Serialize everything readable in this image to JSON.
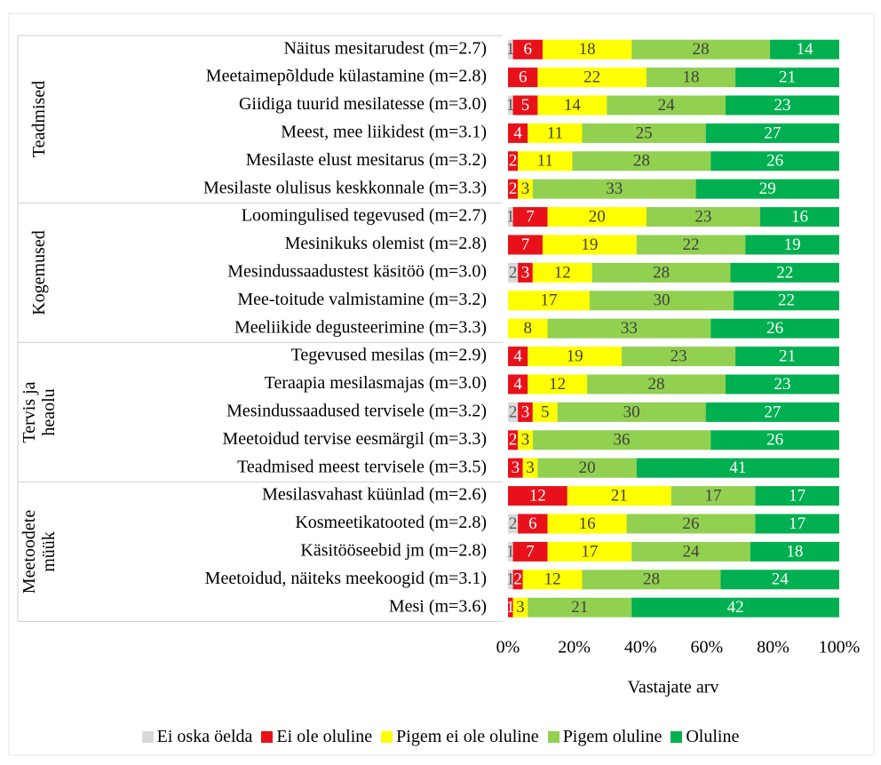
{
  "chart_data": {
    "type": "bar",
    "orientation": "horizontal",
    "stacked": "percent",
    "groups": [
      {
        "name": "Teadmised",
        "categories": [
          "Näitus mesitarudest (m=2.7)",
          "Meetaimepõldude külastamine (m=2.8)",
          "Giidiga tuurid mesilatesse (m=3.0)",
          "Meest, mee liikidest (m=3.1)",
          "Mesilaste elust mesitarus (m=3.2)",
          "Mesilaste olulisus keskkonnale (m=3.3)"
        ]
      },
      {
        "name": "Kogemused",
        "categories": [
          "Loomingulised tegevused  (m=2.7)",
          "Mesinikuks olemist (m=2.8)",
          "Mesindussaadustest käsitöö (m=3.0)",
          "Mee-toitude valmistamine (m=3.2)",
          "Meeliikide degusteerimine (m=3.3)"
        ]
      },
      {
        "name": "Tervis ja heaolu",
        "categories": [
          "Tegevused mesilas  (m=2.9)",
          "Teraapia mesilasmajas (m=3.0)",
          "Mesindussaadused tervisele (m=3.2)",
          "Meetoidud tervise eesmärgil (m=3.3)",
          "Teadmised meest tervisele (m=3.5)"
        ]
      },
      {
        "name": "Meetoodete müük",
        "categories": [
          "Mesilasvahast küünlad (m=2.6)",
          "Kosmeetikatooted (m=2.8)",
          "Käsitööseebid jm (m=2.8)",
          "Meetoidud, näiteks meekoogid (m=3.1)",
          "Mesi (m=3.6)"
        ]
      }
    ],
    "series": [
      {
        "name": "Ei oska öelda",
        "color": "#d9d9d9",
        "label_color": "#555555",
        "values": [
          1,
          0,
          1,
          0,
          0,
          0,
          1,
          0,
          2,
          0,
          0,
          0,
          0,
          2,
          0,
          0,
          0,
          2,
          1,
          1,
          0
        ]
      },
      {
        "name": "Ei ole oluline",
        "color": "#e8111a",
        "label_color": "#ffffff",
        "values": [
          6,
          6,
          5,
          4,
          2,
          2,
          7,
          7,
          3,
          0,
          0,
          4,
          4,
          3,
          2,
          3,
          12,
          6,
          7,
          2,
          1
        ]
      },
      {
        "name": "Pigem ei ole oluline",
        "color": "#ffff00",
        "label_color": "#404040",
        "values": [
          18,
          22,
          14,
          11,
          11,
          3,
          20,
          19,
          12,
          17,
          8,
          19,
          12,
          5,
          3,
          3,
          21,
          16,
          17,
          12,
          3
        ]
      },
      {
        "name": "Pigem oluline",
        "color": "#92d050",
        "label_color": "#404040",
        "values": [
          28,
          18,
          24,
          25,
          28,
          33,
          23,
          22,
          28,
          30,
          33,
          23,
          28,
          30,
          36,
          20,
          17,
          26,
          24,
          28,
          21
        ]
      },
      {
        "name": "Oluline",
        "color": "#00b050",
        "label_color": "#ffffff",
        "values": [
          14,
          21,
          23,
          27,
          26,
          29,
          16,
          19,
          22,
          22,
          26,
          21,
          23,
          27,
          26,
          41,
          17,
          17,
          18,
          24,
          42
        ]
      }
    ],
    "xlim": [
      0,
      100
    ],
    "xticks": [
      {
        "value": 0,
        "label": "0%"
      },
      {
        "value": 20,
        "label": "20%"
      },
      {
        "value": 40,
        "label": "40%"
      },
      {
        "value": 60,
        "label": "60%"
      },
      {
        "value": 80,
        "label": "80%"
      },
      {
        "value": 100,
        "label": "100%"
      }
    ],
    "x_label": "Vastajate arv",
    "legend": "bottom"
  }
}
